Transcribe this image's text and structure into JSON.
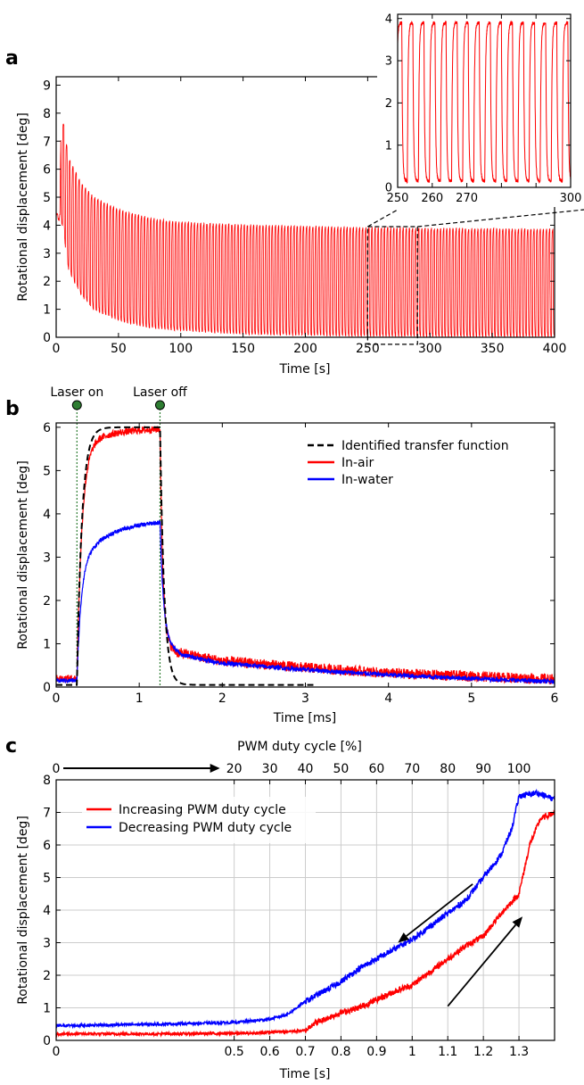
{
  "chart_data": [
    {
      "panel_label": "a",
      "type": "line",
      "xlabel": "Time [s]",
      "ylabel": "Rotational displacement [deg]",
      "xlim": [
        0,
        400
      ],
      "ylim": [
        0,
        9.3
      ],
      "xticks": [
        0,
        50,
        100,
        150,
        200,
        250,
        300,
        350,
        400
      ],
      "yticks": [
        0,
        1,
        2,
        3,
        4,
        5,
        6,
        7,
        8,
        9
      ],
      "series": [
        {
          "color": "#ff0000",
          "kind": "oscillation",
          "period_s": 2.5,
          "envelope_upper": [
            [
              0,
              4.4
            ],
            [
              3,
              4.4
            ],
            [
              4,
              8.2
            ],
            [
              6,
              7.6
            ],
            [
              10,
              6.4
            ],
            [
              20,
              5.5
            ],
            [
              30,
              5.0
            ],
            [
              50,
              4.55
            ],
            [
              75,
              4.25
            ],
            [
              100,
              4.1
            ],
            [
              150,
              4.0
            ],
            [
              200,
              3.95
            ],
            [
              250,
              3.9
            ],
            [
              300,
              3.88
            ],
            [
              400,
              3.85
            ]
          ],
          "envelope_lower": [
            [
              0,
              4.2
            ],
            [
              3,
              4.2
            ],
            [
              5,
              4.0
            ],
            [
              10,
              2.4
            ],
            [
              20,
              1.5
            ],
            [
              30,
              1.0
            ],
            [
              50,
              0.6
            ],
            [
              75,
              0.35
            ],
            [
              100,
              0.25
            ],
            [
              150,
              0.12
            ],
            [
              200,
              0.08
            ],
            [
              250,
              0.05
            ],
            [
              400,
              0.03
            ]
          ]
        }
      ],
      "zoom_box": {
        "x": [
          250,
          290
        ],
        "y": [
          -0.25,
          3.95
        ]
      },
      "inset": {
        "xlim": [
          250,
          300
        ],
        "ylim": [
          0,
          4.1
        ],
        "xticks": [
          250,
          260,
          270,
          280,
          290,
          300
        ],
        "xtick_labels": [
          "250",
          "260",
          "270",
          "",
          "",
          "300"
        ],
        "yticks": [
          0,
          1,
          2,
          3,
          4
        ],
        "period_s": 3.2,
        "high": 3.9,
        "low": 0.15
      }
    },
    {
      "panel_label": "b",
      "type": "line",
      "xlabel": "Time [ms]",
      "ylabel": "Rotational displacement [deg]",
      "xlim": [
        0,
        6
      ],
      "ylim": [
        0,
        6.1
      ],
      "xticks": [
        0,
        1,
        2,
        3,
        4,
        5,
        6
      ],
      "yticks": [
        0,
        1,
        2,
        3,
        4,
        5,
        6
      ],
      "legend_position": "upper-right",
      "events": [
        {
          "label": "Laser on",
          "x": 0.25
        },
        {
          "label": "Laser off",
          "x": 1.25
        }
      ],
      "series": [
        {
          "name": "Identified transfer function",
          "color": "#000000",
          "style": "dashed",
          "baseline": 0.05,
          "on": 0.25,
          "off": 1.25,
          "plateau": 6.0,
          "tau_rise_ms": 0.06,
          "tau_fall_ms": 0.05
        },
        {
          "name": "In-air",
          "color": "#ff0000",
          "baseline": 0.2,
          "plateau": 6.0,
          "rise_to": 5.55,
          "tau_rise_ms": 0.06,
          "creep_to_end": 5.95,
          "fall_drop_to": 1.0,
          "tail": [
            [
              1.45,
              0.8
            ],
            [
              2,
              0.6
            ],
            [
              3,
              0.45
            ],
            [
              4,
              0.32
            ],
            [
              5,
              0.25
            ],
            [
              6,
              0.18
            ]
          ]
        },
        {
          "name": "In-water",
          "color": "#0000ff",
          "baseline": 0.15,
          "rise_to": 2.8,
          "tau_rise_ms": 0.05,
          "creep_to_end": 3.8,
          "fall_drop_to": 1.1,
          "tail": [
            [
              1.5,
              0.75
            ],
            [
              2,
              0.55
            ],
            [
              3,
              0.4
            ],
            [
              4,
              0.28
            ],
            [
              5,
              0.2
            ],
            [
              6,
              0.12
            ]
          ]
        }
      ]
    },
    {
      "panel_label": "c",
      "type": "line",
      "xlabel": "Time [s]",
      "ylabel": "Rotational displacement [deg]",
      "top_axis_label": "PWM duty cycle [%]",
      "xlim": [
        0,
        1.4
      ],
      "ylim": [
        0,
        8
      ],
      "xticks": [
        0,
        0.5,
        0.6,
        0.7,
        0.8,
        0.9,
        1.0,
        1.1,
        1.2,
        1.3
      ],
      "xtick_labels": [
        "0",
        "0.5",
        "0.6",
        "0.7",
        "0.8",
        "0.9",
        "1",
        "1.1",
        "1.2",
        "1.3"
      ],
      "yticks": [
        0,
        1,
        2,
        3,
        4,
        5,
        6,
        7,
        8
      ],
      "top_ticks": [
        {
          "x": 0.0,
          "label": "0"
        },
        {
          "x": 0.5,
          "label": "20"
        },
        {
          "x": 0.6,
          "label": "30"
        },
        {
          "x": 0.7,
          "label": "40"
        },
        {
          "x": 0.8,
          "label": "50"
        },
        {
          "x": 0.9,
          "label": "60"
        },
        {
          "x": 1.0,
          "label": "70"
        },
        {
          "x": 1.1,
          "label": "80"
        },
        {
          "x": 1.2,
          "label": "90"
        },
        {
          "x": 1.3,
          "label": "100"
        }
      ],
      "grid": true,
      "legend_position": "upper-left",
      "series": [
        {
          "name": "Increasing PWM duty cycle",
          "color": "#ff0000",
          "points": [
            [
              0,
              0.2
            ],
            [
              0.3,
              0.2
            ],
            [
              0.55,
              0.22
            ],
            [
              0.6,
              0.25
            ],
            [
              0.7,
              0.3
            ],
            [
              0.72,
              0.5
            ],
            [
              0.8,
              0.85
            ],
            [
              0.85,
              1.0
            ],
            [
              0.9,
              1.25
            ],
            [
              0.95,
              1.5
            ],
            [
              1.0,
              1.7
            ],
            [
              1.05,
              2.1
            ],
            [
              1.1,
              2.5
            ],
            [
              1.15,
              2.9
            ],
            [
              1.2,
              3.2
            ],
            [
              1.25,
              3.9
            ],
            [
              1.3,
              4.5
            ],
            [
              1.33,
              6.0
            ],
            [
              1.36,
              6.8
            ],
            [
              1.4,
              7.0
            ]
          ]
        },
        {
          "name": "Decreasing PWM duty cycle",
          "color": "#0000ff",
          "points": [
            [
              0,
              0.45
            ],
            [
              0.3,
              0.5
            ],
            [
              0.5,
              0.55
            ],
            [
              0.6,
              0.65
            ],
            [
              0.65,
              0.8
            ],
            [
              0.7,
              1.2
            ],
            [
              0.75,
              1.5
            ],
            [
              0.8,
              1.8
            ],
            [
              0.85,
              2.2
            ],
            [
              0.9,
              2.5
            ],
            [
              0.95,
              2.8
            ],
            [
              1.0,
              3.1
            ],
            [
              1.05,
              3.5
            ],
            [
              1.1,
              3.9
            ],
            [
              1.15,
              4.3
            ],
            [
              1.2,
              5.0
            ],
            [
              1.25,
              5.7
            ],
            [
              1.28,
              6.5
            ],
            [
              1.3,
              7.5
            ],
            [
              1.35,
              7.6
            ],
            [
              1.4,
              7.4
            ]
          ]
        }
      ],
      "arrows": [
        {
          "from": [
            1.17,
            4.8
          ],
          "to": [
            0.96,
            3.0
          ]
        },
        {
          "from": [
            1.1,
            1.05
          ],
          "to": [
            1.31,
            3.8
          ]
        }
      ]
    }
  ]
}
